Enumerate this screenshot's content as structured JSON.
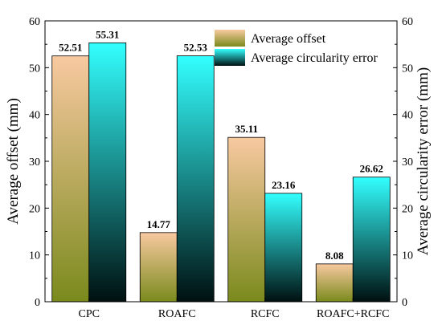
{
  "chart_data": {
    "type": "bar",
    "categories": [
      "CPC",
      "ROAFC",
      "RCFC",
      "ROAFC+RCFC"
    ],
    "series": [
      {
        "name": "Average offset",
        "values": [
          52.51,
          14.77,
          35.11,
          8.08
        ],
        "labels": [
          "52.51",
          "14.77",
          "35.11",
          "8.08"
        ],
        "gradient_top": "#F8C9A0",
        "gradient_bottom": "#7A8A1C"
      },
      {
        "name": "Average circularity error",
        "values": [
          55.31,
          52.53,
          23.16,
          26.62
        ],
        "labels": [
          "55.31",
          "52.53",
          "23.16",
          "26.62"
        ],
        "gradient_top": "#33FFFF",
        "gradient_bottom": "#001010"
      }
    ],
    "ylabel": "Average offset (mm)",
    "y2label": "Average circularity error (mm)",
    "ylim": [
      0,
      60
    ],
    "y2lim": [
      0,
      60
    ],
    "yticks": [
      "0",
      "10",
      "20",
      "30",
      "40",
      "50",
      "60"
    ],
    "grid": false,
    "legend_position": "top-right"
  }
}
